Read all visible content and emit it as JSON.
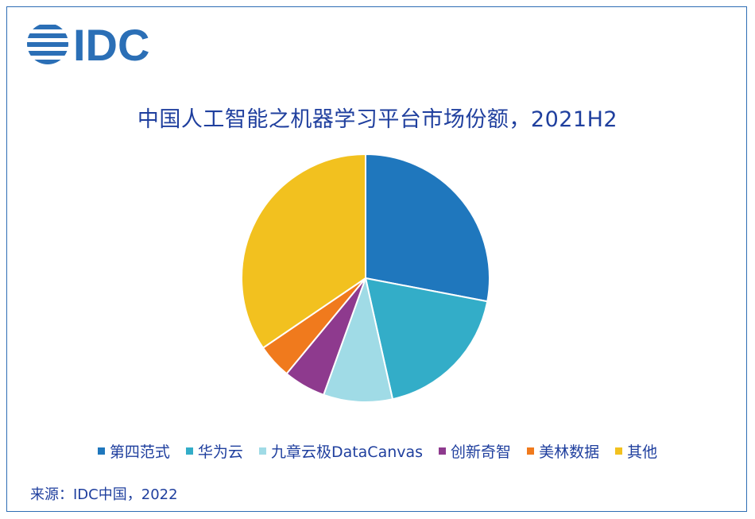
{
  "logo": {
    "text": "IDC",
    "color": "#2b6fb6"
  },
  "chart_data": {
    "type": "pie",
    "title": "中国人工智能之机器学习平台市场份额，2021H2",
    "series": [
      {
        "name": "第四范式",
        "value": 28.0,
        "color": "#1f77bd"
      },
      {
        "name": "华为云",
        "value": 18.5,
        "color": "#33adc8"
      },
      {
        "name": "九章云极DataCanvas",
        "value": 9.0,
        "color": "#a0dbe6"
      },
      {
        "name": "创新奇智",
        "value": 5.5,
        "color": "#8e3a8e"
      },
      {
        "name": "美林数据",
        "value": 4.5,
        "color": "#f07a1d"
      },
      {
        "name": "其他",
        "value": 34.5,
        "color": "#f2c11f"
      }
    ],
    "legend_position": "bottom"
  },
  "footer": {
    "source": "来源：IDC中国，2022"
  }
}
